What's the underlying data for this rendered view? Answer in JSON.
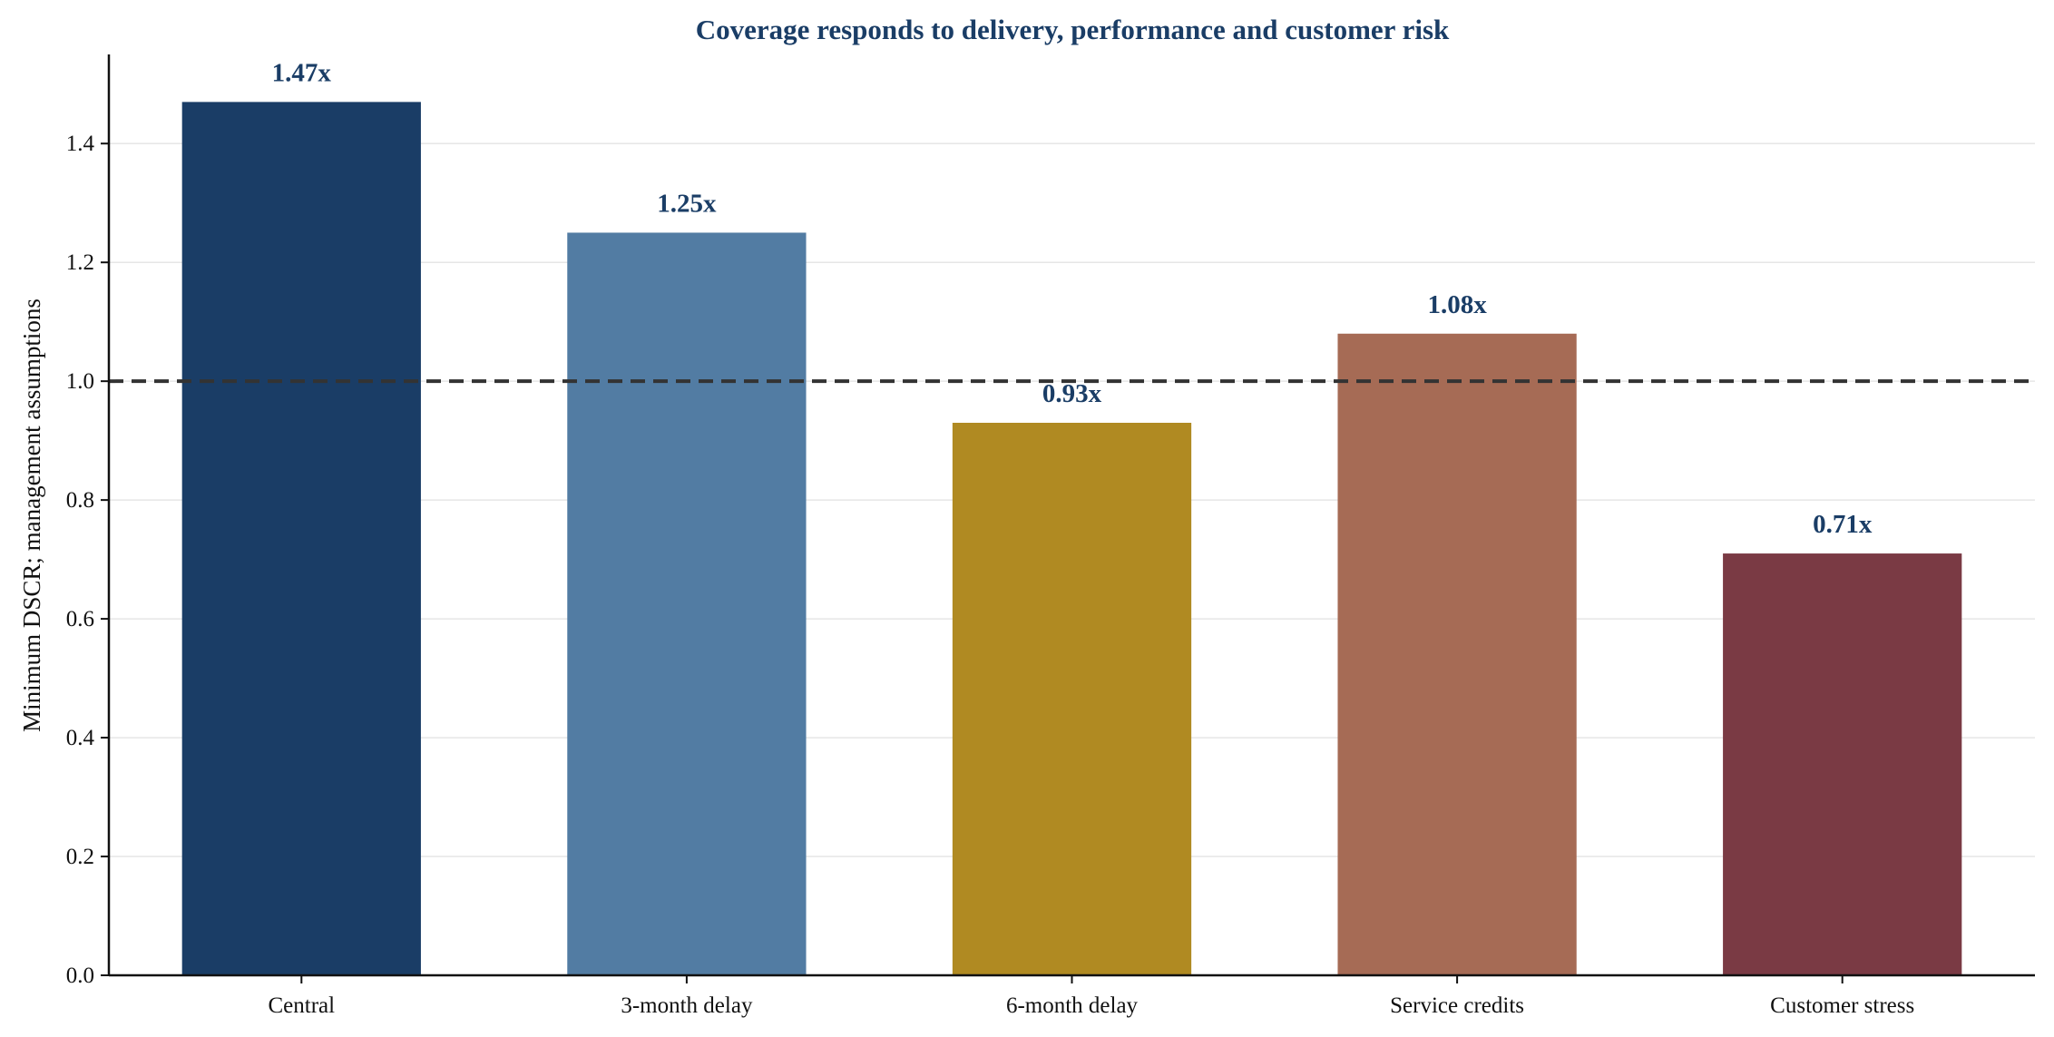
{
  "chart_data": {
    "type": "bar",
    "title": "Coverage responds to delivery, performance and customer risk",
    "xlabel": "",
    "ylabel": "Minimum DSCR; management assumptions",
    "categories": [
      "Central",
      "3-month delay",
      "6-month delay",
      "Service credits",
      "Customer stress"
    ],
    "values": [
      1.47,
      1.25,
      0.93,
      1.08,
      0.71
    ],
    "value_labels": [
      "1.47x",
      "1.25x",
      "0.93x",
      "1.08x",
      "0.71x"
    ],
    "bar_colors": [
      "#1a3d66",
      "#527ca3",
      "#b08a22",
      "#a66b55",
      "#7a3a44"
    ],
    "ylim": [
      0,
      1.55
    ],
    "yticks": [
      0.0,
      0.2,
      0.4,
      0.6,
      0.8,
      1.0,
      1.2,
      1.4
    ],
    "ytick_labels": [
      "0.0",
      "0.2",
      "0.4",
      "0.6",
      "0.8",
      "1.0",
      "1.2",
      "1.4"
    ],
    "reference_line": {
      "value": 1.0,
      "style": "dashed",
      "color": "#333333"
    },
    "grid": "horizontal",
    "title_color": "#1a3d66",
    "label_color": "#1a3d66"
  }
}
